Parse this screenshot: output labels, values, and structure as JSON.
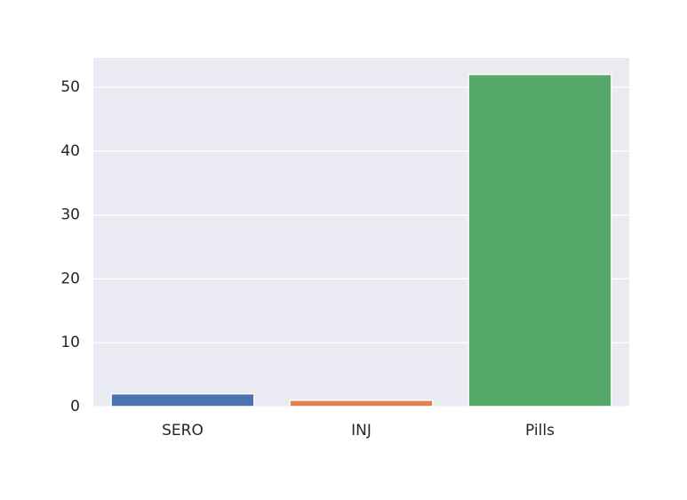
{
  "chart_data": {
    "type": "bar",
    "categories": [
      "SERO",
      "INJ",
      "Pills"
    ],
    "values": [
      2,
      1,
      52
    ],
    "colors": [
      "#4c72b0",
      "#dd8452",
      "#55a868"
    ],
    "title": "",
    "xlabel": "",
    "ylabel": "",
    "ylim": [
      0,
      54.6
    ],
    "yticks": [
      0,
      10,
      20,
      30,
      40,
      50
    ],
    "grid": true,
    "background": "#eaeaf2",
    "grid_color": "#ffffff"
  }
}
